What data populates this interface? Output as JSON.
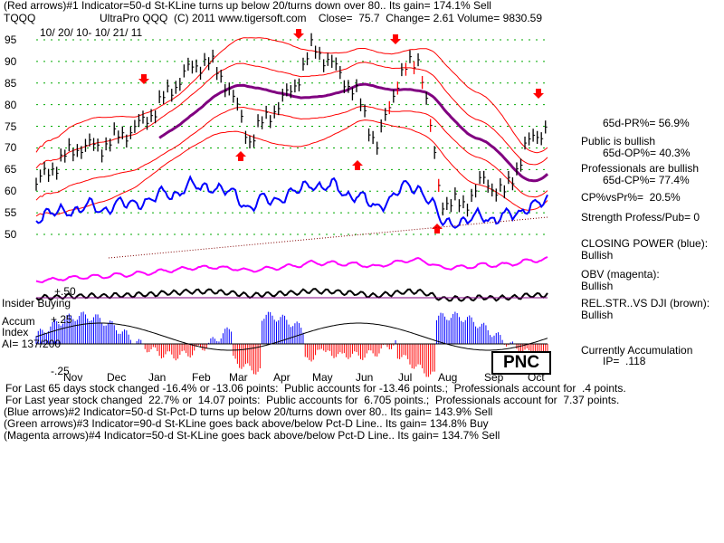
{
  "header": {
    "red_arrows": "(Red arrows)#1 Indicator=50-d St-KLine turns up below 20/turns down over 80.. Its gain= 174.1% Sell",
    "ticker": "TQQQ",
    "title": "UltraPro QQQ  (C) 2011 www.tigersoft.com    Close=  75.7  Change= 2.61 Volume= 9830.59",
    "date_range": "10/ 20/ 10- 10/ 21/ 11"
  },
  "labels": {
    "insider_buying": "Insider Buying",
    "accum_title": "Accum",
    "accum_index": "Index",
    "ai": "AI= 137/200",
    "plus50": "+.50",
    "plus25": "+.25",
    "minus25": "-.25",
    "pnc": "PNC"
  },
  "right_panel": {
    "pr": "65d-PR%= 56.9%",
    "public": "Public is bullish",
    "op": "65d-OP%= 40.3%",
    "pros": "Professionals are bullish",
    "cp": "65d-CP%= 77.4%",
    "cpvspr": "CP%vsPr%=  20.5%",
    "strength": "Strength Profess/Pub= 0",
    "closing_power": "CLOSING POWER (blue):",
    "cp_state": "Bullish",
    "obv": "OBV (magenta):",
    "obv_state": "Bullish",
    "relstr": "REL.STR..VS DJI (brown):",
    "relstr_state": "Bullish",
    "currently": "Currently Accumulation",
    "ip": "IP=  .118"
  },
  "footer": {
    "line1": "For Last 65 days stock changed -16.4% or -13.06 points:  Public accounts for -13.46 points.;  Professionals account for  .4 points.",
    "line2": "For Last year stock changed  22.7% or  14.07 points:  Public accounts for  6.705 points.;  Professionals account for  7.37 points.",
    "line3": "(Blue arrows)#2 Indicator=50-d St-Pct-D turns up below 20/turns down over 80.. Its gain= 143.9% Sell",
    "line4": "(Green arrows)#3 Indicator=90-d St-KLine goes back above/below Pct-D Line.. Its gain= 134.8% Buy",
    "line5": "(Magenta arrows)#4 Indicator=50-d St-KLine goes back above/below Pct-D Line.. Its gain= 134.7% Sell"
  },
  "colors": {
    "price": "#000000",
    "bands": "#ff0000",
    "ma": "#800080",
    "closing_power": "#0000ff",
    "obv": "#ff00ff",
    "relstr": "#000000",
    "accum_pos": "#0000ff",
    "accum_neg": "#ff0000",
    "grid": "#00aa00"
  },
  "chart_data": {
    "type": "line",
    "ticks_y": [
      95,
      90,
      85,
      80,
      75,
      70,
      65,
      60,
      55,
      50
    ],
    "ticks_x": [
      "Nov",
      "Dec",
      "Jan",
      "Feb",
      "Mar",
      "Apr",
      "May",
      "Jun",
      "Jul",
      "Aug",
      "Sep",
      "Oct"
    ],
    "ylim": [
      50,
      95
    ],
    "price": {
      "name": "TQQQ",
      "dates": [
        "Oct 20",
        "Nov",
        "Nov mid",
        "Dec",
        "Dec mid",
        "Jan",
        "Jan mid",
        "Feb",
        "Feb mid",
        "Mar",
        "Mar mid",
        "Apr",
        "Apr mid",
        "May",
        "May mid",
        "Jun",
        "Jun mid",
        "Jul",
        "Jul mid",
        "Aug",
        "Aug mid",
        "Sep",
        "Sep mid",
        "Oct",
        "Oct 21"
      ],
      "values": [
        61,
        66,
        70,
        70,
        73,
        76,
        82,
        88,
        91,
        85,
        72,
        78,
        83,
        93,
        88,
        82,
        70,
        86,
        91,
        58,
        57,
        63,
        60,
        71,
        75.7
      ]
    }
  }
}
